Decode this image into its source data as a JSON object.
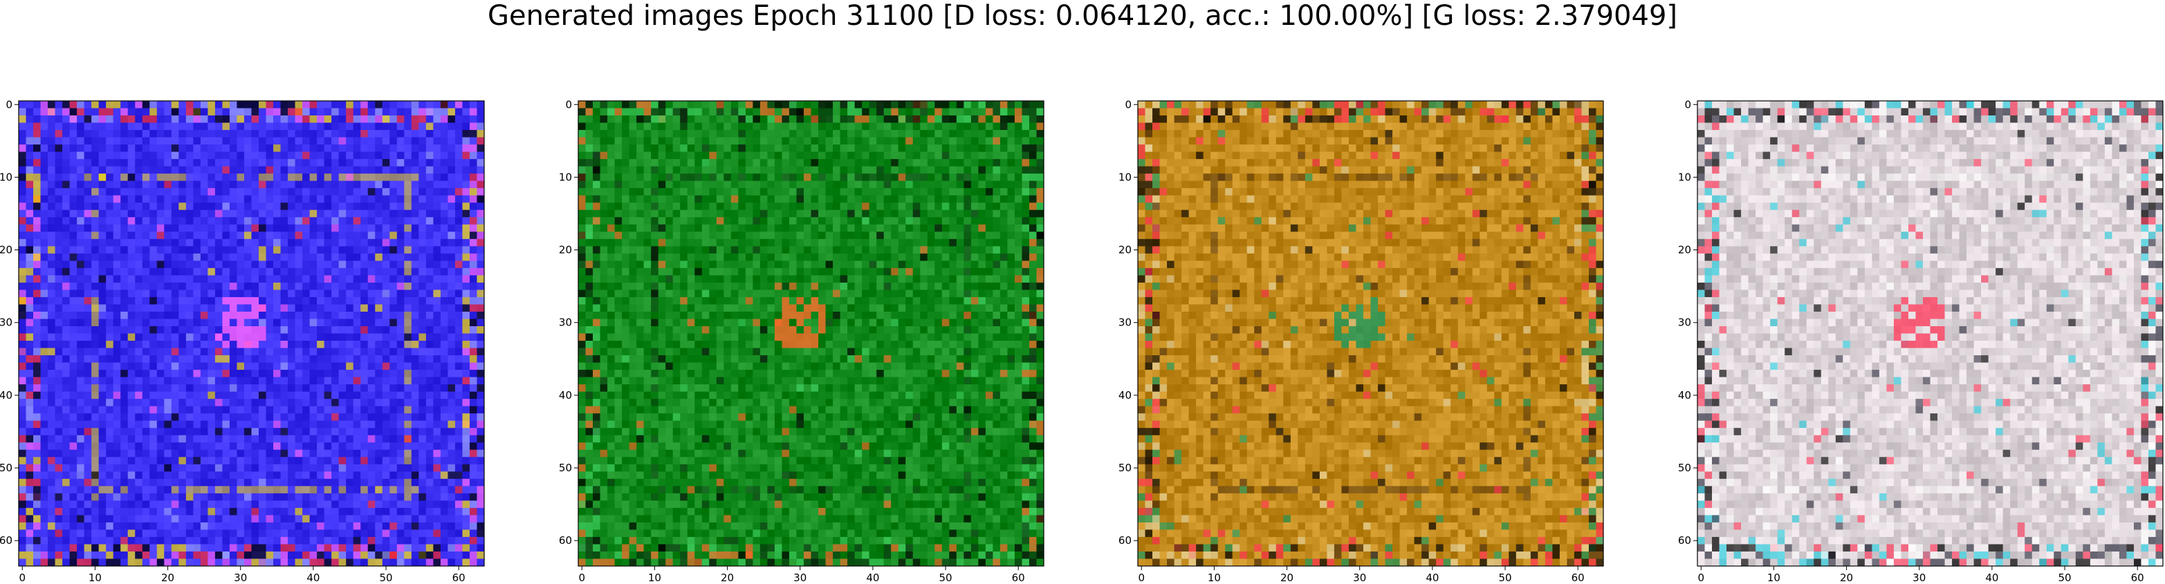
{
  "figure": {
    "title": "Generated images Epoch 31100 [D loss: 0.064120, acc.: 100.00%] [G loss: 2.379049]"
  },
  "chart_data": [
    {
      "type": "heatmap",
      "description_visible": "generated image sample 1",
      "base_color": "#3a2ef0",
      "accent_colors": [
        "#ffe600",
        "#ff2a2a",
        "#ff66ff",
        "#000000",
        "#9aa0ff"
      ],
      "xlim": [
        0,
        63
      ],
      "ylim": [
        63,
        0
      ],
      "x_ticks": [
        0,
        10,
        20,
        30,
        40,
        50,
        60
      ],
      "y_ticks": [
        0,
        10,
        20,
        30,
        40,
        50,
        60
      ],
      "grid": false
    },
    {
      "type": "heatmap",
      "description_visible": "generated image sample 2",
      "base_color": "#128a1e",
      "accent_colors": [
        "#0a3a10",
        "#3fd060",
        "#ff6a2a",
        "#000000"
      ],
      "xlim": [
        0,
        63
      ],
      "ylim": [
        63,
        0
      ],
      "x_ticks": [
        0,
        10,
        20,
        30,
        40,
        50,
        60
      ],
      "y_ticks": [
        0,
        10,
        20,
        30,
        40,
        50,
        60
      ],
      "grid": false
    },
    {
      "type": "heatmap",
      "description_visible": "generated image sample 3",
      "base_color": "#c28a1c",
      "accent_colors": [
        "#4a2c08",
        "#ff3050",
        "#1a9a60",
        "#000000",
        "#e8d6a0"
      ],
      "xlim": [
        0,
        63
      ],
      "ylim": [
        63,
        0
      ],
      "x_ticks": [
        0,
        10,
        20,
        30,
        40,
        50,
        60
      ],
      "y_ticks": [
        0,
        10,
        20,
        30,
        40,
        50,
        60
      ],
      "grid": false
    },
    {
      "type": "heatmap",
      "description_visible": "generated image sample 4",
      "base_color": "#dcd4d8",
      "accent_colors": [
        "#ffffff",
        "#3a3a4a",
        "#ff4060",
        "#30d0e0",
        "#000000"
      ],
      "xlim": [
        0,
        63
      ],
      "ylim": [
        63,
        0
      ],
      "x_ticks": [
        0,
        10,
        20,
        30,
        40,
        50,
        60
      ],
      "y_ticks": [
        0,
        10,
        20,
        30,
        40,
        50,
        60
      ],
      "grid": false
    }
  ]
}
